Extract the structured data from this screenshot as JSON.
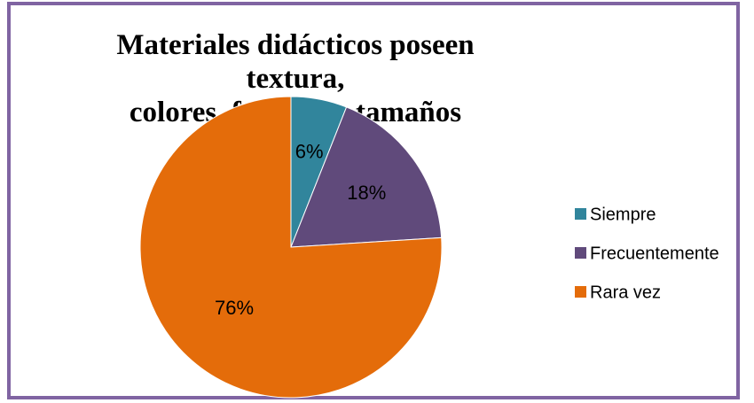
{
  "chart_data": {
    "type": "pie",
    "title": "Materiales didácticos  poseen textura,\ncolores, formas, y  tamaños",
    "categories": [
      "Siempre",
      "Frecuentemente",
      "Rara vez"
    ],
    "values": [
      6,
      18,
      76
    ],
    "value_labels": [
      "6%",
      "18%",
      "76%"
    ],
    "colors": [
      "#31859c",
      "#604a7b",
      "#e46c0a"
    ],
    "legend_position": "right",
    "frame_color": "#8064a2"
  }
}
